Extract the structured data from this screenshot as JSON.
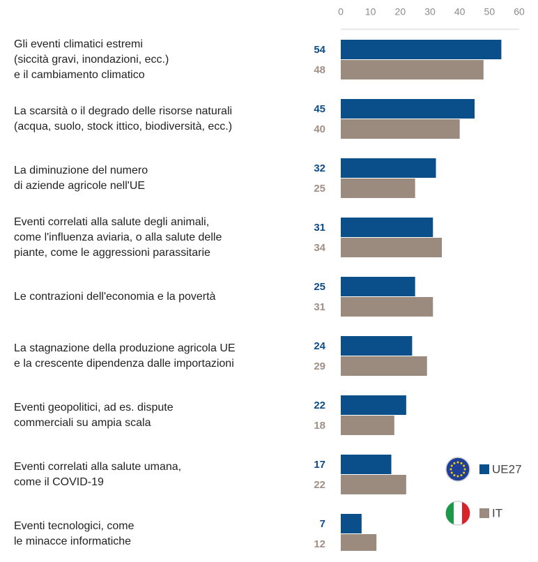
{
  "chart_data": {
    "type": "bar",
    "orientation": "horizontal",
    "categories": [
      "Gli eventi climatici estremi\n(siccità gravi, inondazioni, ecc.)\ne il cambiamento climatico",
      "La scarsità o il degrado delle risorse naturali\n(acqua, suolo, stock ittico, biodiversità, ecc.)",
      "La diminuzione del numero\ndi aziende agricole nell'UE",
      "Eventi correlati alla salute degli animali,\ncome l'influenza aviaria, o alla salute delle\npiante, come le aggressioni parassitarie",
      "Le contrazioni dell'economia e la povertà",
      "La stagnazione della produzione agricola UE\ne la crescente dipendenza dalle importazioni",
      "Eventi geopolitici, ad es. dispute\ncommerciali su ampia scala",
      "Eventi correlati alla salute umana,\ncome il COVID-19",
      "Eventi tecnologici, come\nle minacce informatiche"
    ],
    "series": [
      {
        "name": "UE27",
        "color": "#0b4f8a",
        "label_color": "#0e4c86",
        "values": [
          54,
          45,
          32,
          31,
          25,
          24,
          22,
          17,
          7
        ]
      },
      {
        "name": "IT",
        "color": "#9b8b7f",
        "label_color": "#a08f84",
        "values": [
          48,
          40,
          25,
          34,
          31,
          29,
          18,
          22,
          12
        ]
      }
    ],
    "xlim": [
      0,
      60
    ],
    "xticks": [
      0,
      10,
      20,
      30,
      40,
      50,
      60
    ],
    "grid": false
  }
}
